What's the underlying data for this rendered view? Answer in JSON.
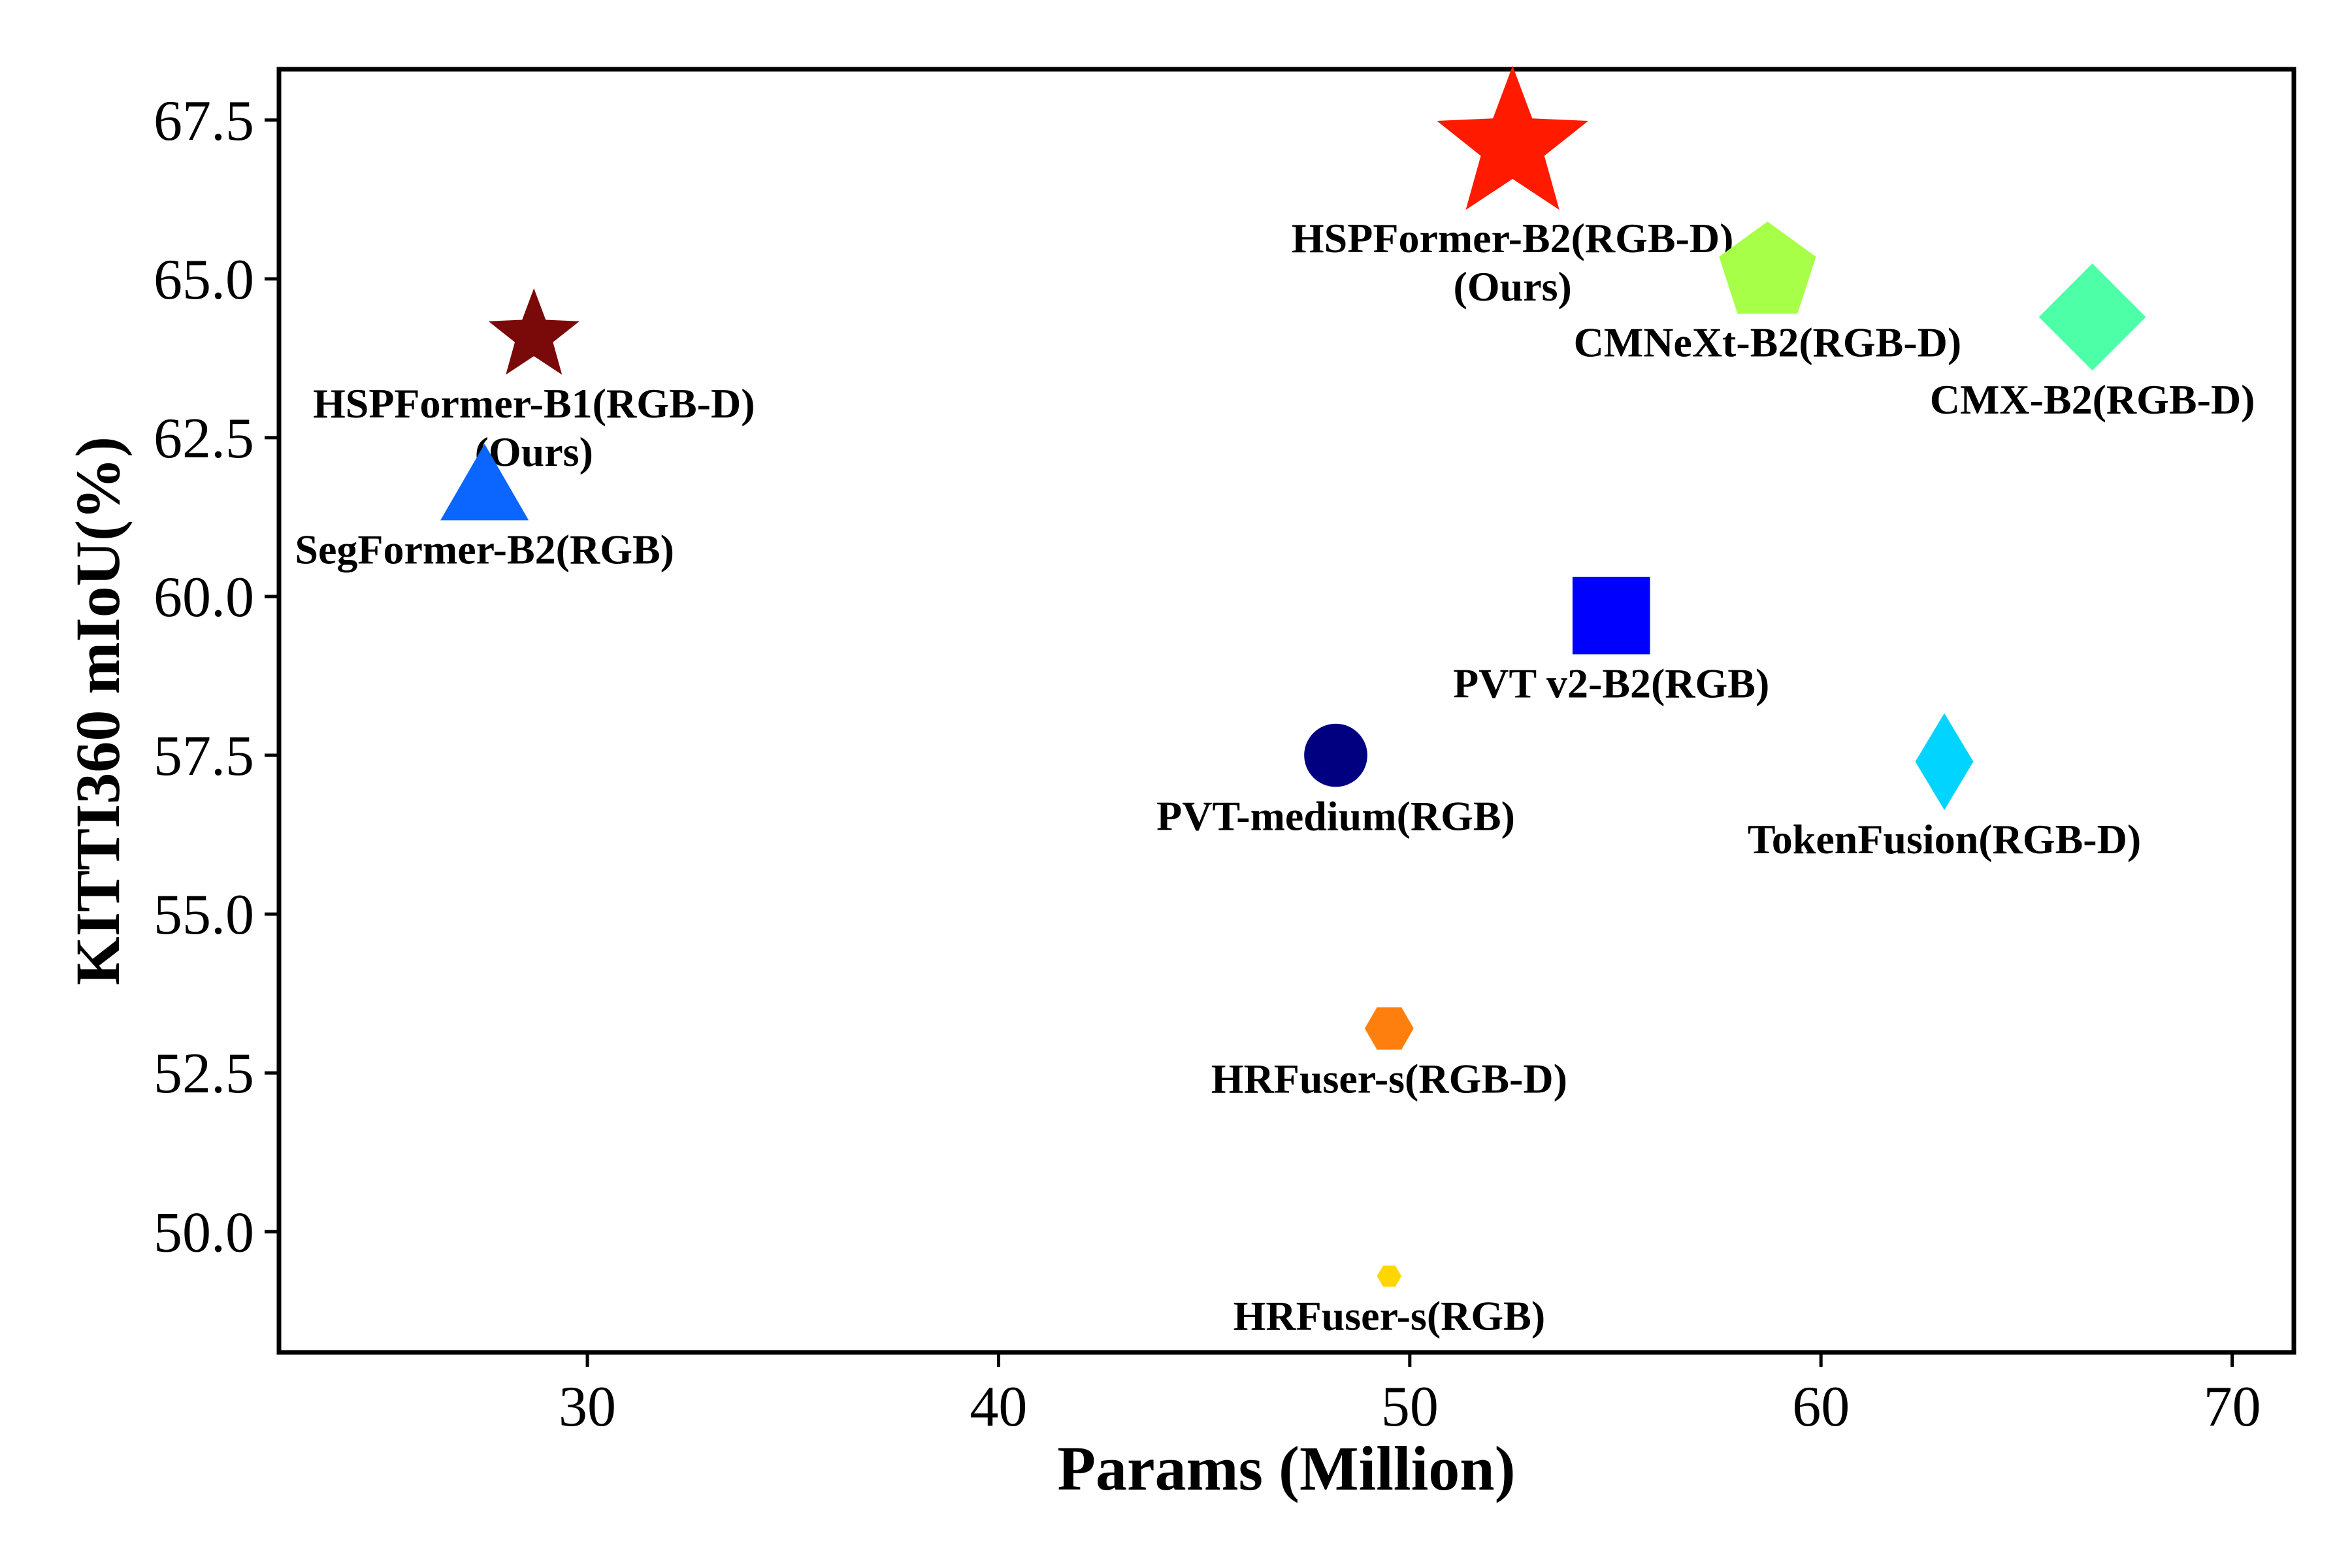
{
  "chart_data": {
    "type": "scatter",
    "xlabel": "Params (Million)",
    "ylabel": "KITTI360 mIoU(%)",
    "xlim": [
      22.5,
      71.5
    ],
    "ylim": [
      48.1,
      68.3
    ],
    "xticks": [
      30,
      40,
      50,
      60,
      70
    ],
    "yticks": [
      50.0,
      52.5,
      55.0,
      57.5,
      60.0,
      62.5,
      65.0,
      67.5
    ],
    "xtick_labels": [
      "30",
      "40",
      "50",
      "60",
      "70"
    ],
    "ytick_labels": [
      "50.0",
      "52.5",
      "55.0",
      "57.5",
      "60.0",
      "62.5",
      "65.0",
      "67.5"
    ],
    "grid": false,
    "legend": "none",
    "points": [
      {
        "label_lines": [
          "HSPFormer-B2(RGB-D)",
          "(Ours)"
        ],
        "x": 52.5,
        "y": 67.1,
        "marker": "star",
        "color": "#ff1a00",
        "size": 1.25
      },
      {
        "label_lines": [
          "CMNeXt-B2(RGB-D)"
        ],
        "x": 58.7,
        "y": 65.1,
        "marker": "pentagon",
        "color": "#a8ff47",
        "size": 1.0
      },
      {
        "label_lines": [
          "CMX-B2(RGB-D)"
        ],
        "x": 66.6,
        "y": 64.4,
        "marker": "diamond",
        "color": "#4dffa6",
        "size": 1.0
      },
      {
        "label_lines": [
          "HSPFormer-B1(RGB-D)",
          "(Ours)"
        ],
        "x": 28.7,
        "y": 64.1,
        "marker": "star",
        "color": "#7a0a0a",
        "size": 0.75
      },
      {
        "label_lines": [
          "SegFormer-B2(RGB)"
        ],
        "x": 27.5,
        "y": 61.6,
        "marker": "triangle",
        "color": "#0a66ff",
        "size": 1.0
      },
      {
        "label_lines": [
          "PVT v2-B2(RGB)"
        ],
        "x": 54.9,
        "y": 59.7,
        "marker": "square",
        "color": "#0000ff",
        "size": 1.0
      },
      {
        "label_lines": [
          "PVT-medium(RGB)"
        ],
        "x": 48.2,
        "y": 57.5,
        "marker": "circle",
        "color": "#000080",
        "size": 1.0
      },
      {
        "label_lines": [
          "TokenFusion(RGB-D)"
        ],
        "x": 63.0,
        "y": 57.4,
        "marker": "thin_diamond",
        "color": "#00d4ff",
        "size": 1.0
      },
      {
        "label_lines": [
          "HRFuser-s(RGB-D)"
        ],
        "x": 49.5,
        "y": 53.2,
        "marker": "hexagon",
        "color": "#ff7f0e",
        "size": 0.6
      },
      {
        "label_lines": [
          "HRFuser-s(RGB)"
        ],
        "x": 49.5,
        "y": 49.3,
        "marker": "hexagon",
        "color": "#ffd700",
        "size": 0.3
      }
    ]
  }
}
